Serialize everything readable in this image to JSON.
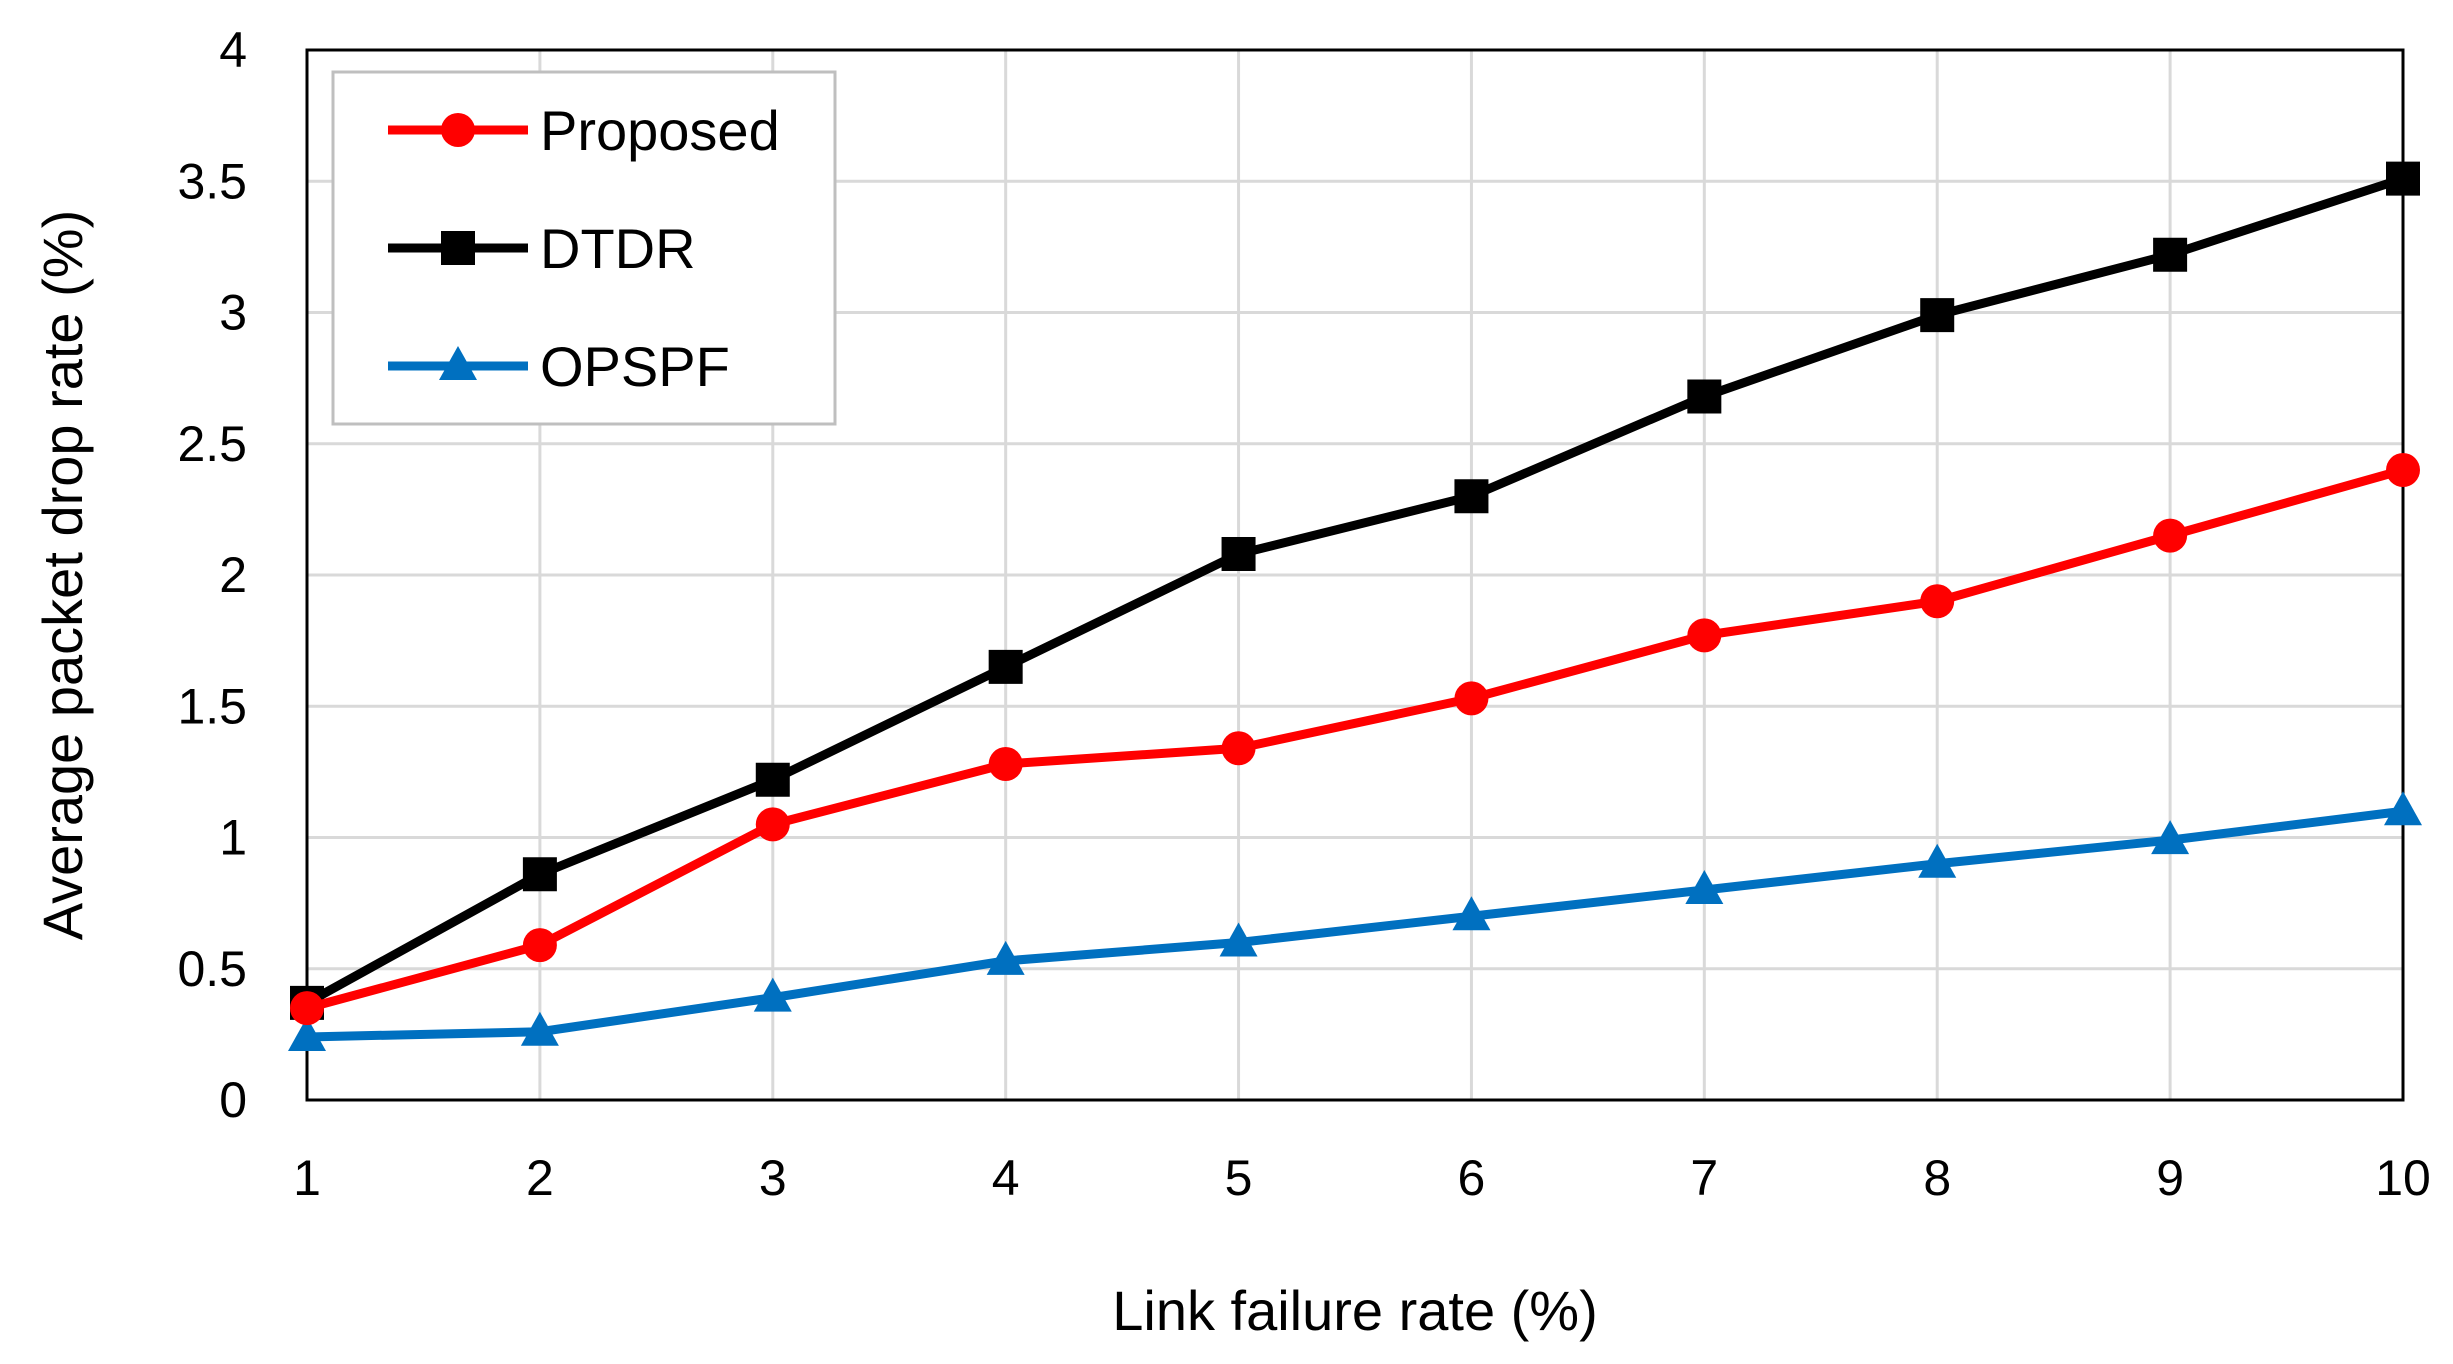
{
  "chart_data": {
    "type": "line",
    "title": "",
    "xlabel": "Link failure rate (%)",
    "ylabel": "Average packet drop rate (%)",
    "x": [
      1,
      2,
      3,
      4,
      5,
      6,
      7,
      8,
      9,
      10
    ],
    "xlim": [
      1,
      10
    ],
    "ylim": [
      0,
      4
    ],
    "xticks": [
      "1",
      "2",
      "3",
      "4",
      "5",
      "6",
      "7",
      "8",
      "9",
      "10"
    ],
    "yticks": [
      "0",
      "0.5",
      "1",
      "1.5",
      "2",
      "2.5",
      "3",
      "3.5",
      "4"
    ],
    "grid": true,
    "legend_position": "top-left",
    "series": [
      {
        "name": "Proposed",
        "color": "#ff0000",
        "marker": "circle",
        "values": [
          0.35,
          0.59,
          1.05,
          1.28,
          1.34,
          1.53,
          1.77,
          1.9,
          2.15,
          2.4
        ]
      },
      {
        "name": "DTDR",
        "color": "#000000",
        "marker": "square",
        "values": [
          0.37,
          0.86,
          1.22,
          1.65,
          2.08,
          2.3,
          2.68,
          2.99,
          3.22,
          3.51
        ]
      },
      {
        "name": "OPSPF",
        "color": "#0070c0",
        "marker": "triangle",
        "values": [
          0.24,
          0.26,
          0.39,
          0.53,
          0.6,
          0.7,
          0.8,
          0.9,
          0.99,
          1.1
        ]
      }
    ]
  }
}
